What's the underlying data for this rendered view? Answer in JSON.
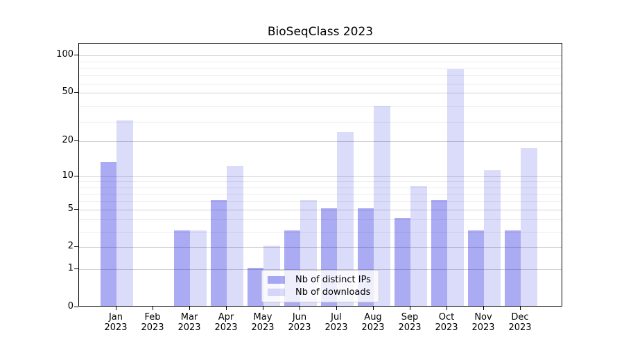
{
  "title": "BioSeqClass 2023",
  "chart_data": {
    "type": "bar",
    "title": "BioSeqClass 2023",
    "categories": [
      "Jan",
      "Feb",
      "Mar",
      "Apr",
      "May",
      "Jun",
      "Jul",
      "Aug",
      "Sep",
      "Oct",
      "Nov",
      "Dec"
    ],
    "x_tick_year": "2023",
    "series": [
      {
        "name": "Nb of distinct IPs",
        "color": "#0d0de0",
        "alpha": 0.35,
        "rendered_color": "#aaaaf4",
        "values": [
          13,
          0,
          3,
          6,
          1,
          3,
          5,
          5,
          4,
          6,
          3,
          3
        ]
      },
      {
        "name": "Nb of downloads",
        "color": "#0000db",
        "alpha": 0.14,
        "rendered_color": "#dbdbfa",
        "values": [
          29,
          0,
          3,
          12,
          2,
          6,
          23,
          38,
          8,
          75,
          11,
          17
        ]
      }
    ],
    "y_axis": {
      "scale": "log1p",
      "ticks": [
        100,
        50,
        20,
        10,
        5,
        2,
        1,
        0
      ],
      "range_top_approx": 125,
      "gridlines": "major light gray at labeled ticks, faint minor log gridlines"
    },
    "legend": {
      "entries": [
        "Nb of distinct IPs",
        "Nb of downloads"
      ],
      "position": "lower center, inside axes"
    },
    "colors": {
      "grid_major": "#d2d2d2",
      "grid_minor": "#ebebeb",
      "frame": "#000000",
      "text": "#000000",
      "legend_border": "#cccccc"
    }
  }
}
